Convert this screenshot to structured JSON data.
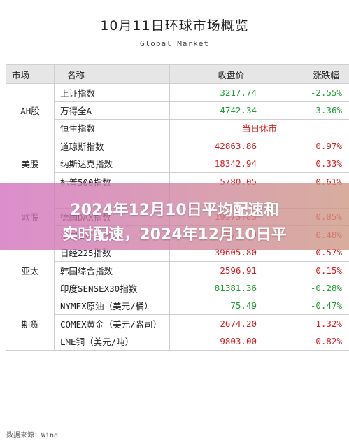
{
  "title": "10月11日环球市场概览",
  "subtitle": "Global Market",
  "headers": {
    "market": "市场",
    "name": "名称",
    "close": "收盘价",
    "change": "涨跌幅"
  },
  "colors": {
    "up": "#d81e1e",
    "down": "#1e9e32",
    "header_bg": "#e6e6e6"
  },
  "groups": [
    {
      "market": "AH股",
      "rows": [
        {
          "name": "上证指数",
          "close": "3217.74",
          "change": "-2.55%",
          "dir": "down"
        },
        {
          "name": "万得全A",
          "close": "4742.34",
          "change": "-3.36%",
          "dir": "down"
        },
        {
          "name": "恒生指数",
          "status": "当日休市"
        }
      ]
    },
    {
      "market": "美股",
      "rows": [
        {
          "name": "道琼斯指数",
          "close": "42863.86",
          "change": "0.97%",
          "dir": "up"
        },
        {
          "name": "纳斯达克指数",
          "close": "18342.94",
          "change": "0.33%",
          "dir": "up"
        },
        {
          "name": "标普500指数",
          "close": "5780.05",
          "change": "0.61%",
          "dir": "up"
        }
      ]
    },
    {
      "market": "欧股",
      "rows": [
        {
          "name": "",
          "close": "",
          "change": "",
          "dir": "up"
        },
        {
          "name": "德国DAX指数",
          "close": "19373.83",
          "change": "0.85%",
          "dir": "up"
        },
        {
          "name": "法国CAC40指数",
          "close": "7577.89",
          "change": "0.48%",
          "dir": "up"
        }
      ]
    },
    {
      "market": "亚太",
      "rows": [
        {
          "name": "日经225指数",
          "close": "39605.80",
          "change": "0.57%",
          "dir": "up"
        },
        {
          "name": "韩国综合指数",
          "close": "2596.91",
          "change": "0.15%",
          "dir": "up"
        },
        {
          "name": "印度SENSEX30指数",
          "close": "81381.36",
          "change": "-0.28%",
          "dir": "down"
        }
      ]
    },
    {
      "market": "期货",
      "rows": [
        {
          "name": "NYMEX原油（美元/桶）",
          "close": "75.49",
          "change": "-0.47%",
          "dir": "down"
        },
        {
          "name": "COMEX黄金（美元/盎司）",
          "close": "2674.20",
          "change": "1.32%",
          "dir": "up"
        },
        {
          "name": "LME铜（美元/吨）",
          "close": "9803.00",
          "change": "0.82%",
          "dir": "up"
        }
      ]
    }
  ],
  "source": "数据来源：Wind",
  "banner": {
    "line1": "2024年12月10日平均配速和",
    "line2": "实时配速，2024年12月10日平"
  }
}
